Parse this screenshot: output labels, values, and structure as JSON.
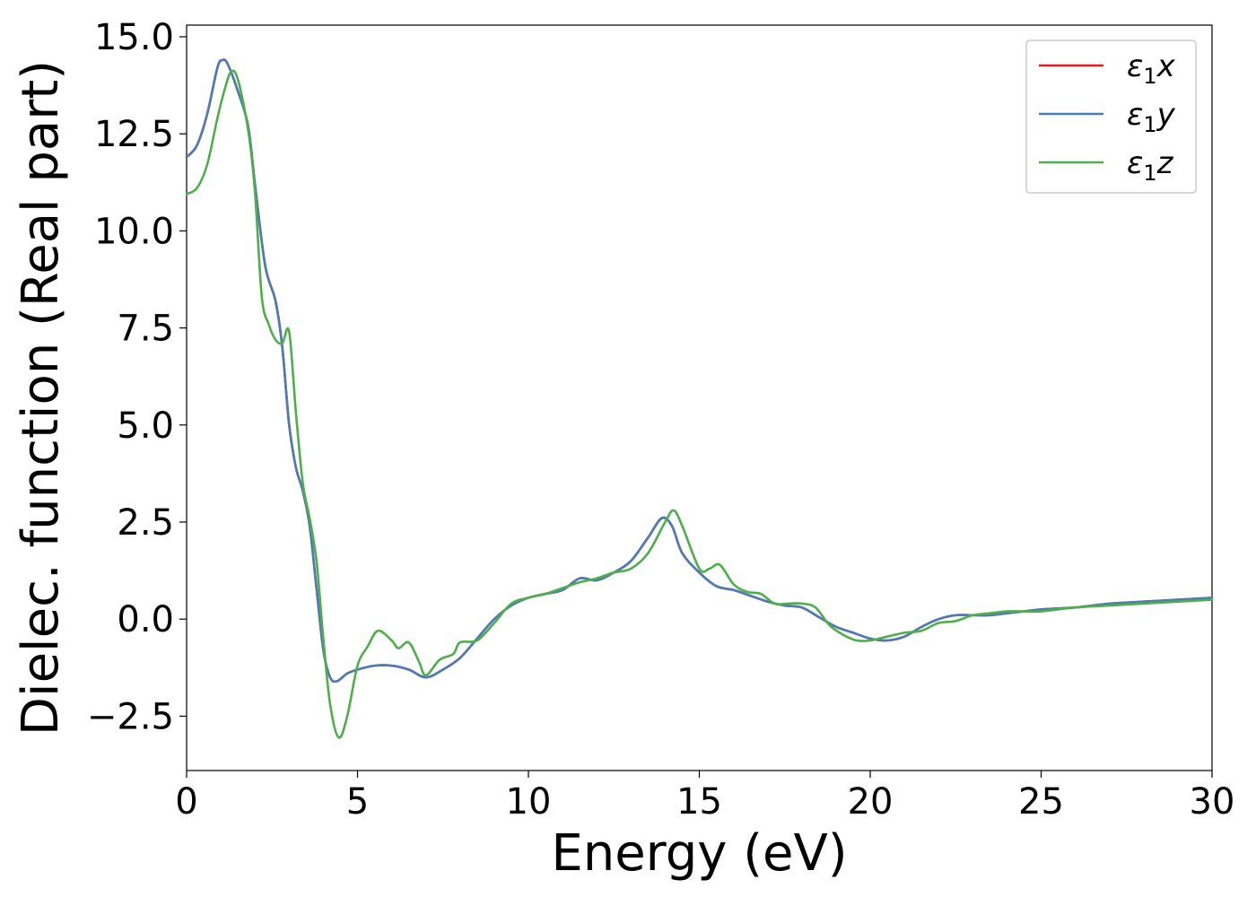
{
  "chart_data": {
    "type": "line",
    "title": "",
    "xlabel": "Energy (eV)",
    "ylabel": "Dielec. function (Real part)",
    "xlim": [
      0,
      30
    ],
    "ylim": [
      -3.9,
      15.3
    ],
    "xticks": [
      0,
      5,
      10,
      15,
      20,
      25,
      30
    ],
    "xtick_labels": [
      "0",
      "5",
      "10",
      "15",
      "20",
      "25",
      "30"
    ],
    "yticks": [
      -2.5,
      0.0,
      2.5,
      5.0,
      7.5,
      10.0,
      12.5,
      15.0
    ],
    "ytick_labels": [
      "−2.5",
      "0.0",
      "2.5",
      "5.0",
      "7.5",
      "10.0",
      "12.5",
      "15.0"
    ],
    "grid": false,
    "legend_position": "top-right",
    "series": [
      {
        "name": "ε1x",
        "symbol": "ε",
        "subscript": "1",
        "axis": "x",
        "color": "#e41a1c",
        "x": [
          0,
          0.3,
          0.6,
          0.9,
          1.05,
          1.2,
          1.5,
          1.8,
          2.0,
          2.3,
          2.6,
          2.8,
          3.0,
          3.2,
          3.4,
          3.6,
          3.8,
          4.0,
          4.2,
          4.4,
          4.7,
          5.0,
          5.5,
          6.0,
          6.5,
          7.0,
          7.5,
          8.0,
          8.5,
          9.0,
          9.5,
          10.0,
          10.5,
          11.0,
          11.5,
          12.0,
          12.5,
          13.0,
          13.5,
          13.9,
          14.2,
          14.5,
          15.0,
          15.5,
          16.0,
          16.5,
          17.0,
          17.5,
          18.0,
          18.5,
          19.0,
          19.5,
          20.0,
          20.5,
          21.0,
          21.5,
          22.0,
          22.5,
          23.0,
          23.5,
          24.0,
          24.5,
          25.0,
          26.0,
          27.0,
          28.0,
          29.0,
          30.0
        ],
        "values": [
          11.9,
          12.2,
          13.0,
          14.2,
          14.4,
          14.3,
          13.6,
          12.7,
          11.2,
          9.1,
          8.2,
          7.0,
          5.0,
          3.9,
          3.3,
          2.4,
          0.8,
          -0.8,
          -1.5,
          -1.6,
          -1.4,
          -1.3,
          -1.2,
          -1.2,
          -1.3,
          -1.5,
          -1.3,
          -1.0,
          -0.5,
          0.0,
          0.35,
          0.55,
          0.65,
          0.75,
          1.05,
          1.0,
          1.2,
          1.5,
          2.1,
          2.6,
          2.4,
          1.7,
          1.2,
          0.85,
          0.75,
          0.6,
          0.45,
          0.35,
          0.3,
          0.05,
          -0.2,
          -0.35,
          -0.5,
          -0.55,
          -0.45,
          -0.2,
          0.0,
          0.1,
          0.1,
          0.1,
          0.15,
          0.2,
          0.25,
          0.3,
          0.4,
          0.45,
          0.5,
          0.55
        ]
      },
      {
        "name": "ε1y",
        "symbol": "ε",
        "subscript": "1",
        "axis": "y",
        "color": "#4a7db7",
        "x": [
          0,
          0.3,
          0.6,
          0.9,
          1.05,
          1.2,
          1.5,
          1.8,
          2.0,
          2.3,
          2.6,
          2.8,
          3.0,
          3.2,
          3.4,
          3.6,
          3.8,
          4.0,
          4.2,
          4.4,
          4.7,
          5.0,
          5.5,
          6.0,
          6.5,
          7.0,
          7.5,
          8.0,
          8.5,
          9.0,
          9.5,
          10.0,
          10.5,
          11.0,
          11.5,
          12.0,
          12.5,
          13.0,
          13.5,
          13.9,
          14.2,
          14.5,
          15.0,
          15.5,
          16.0,
          16.5,
          17.0,
          17.5,
          18.0,
          18.5,
          19.0,
          19.5,
          20.0,
          20.5,
          21.0,
          21.5,
          22.0,
          22.5,
          23.0,
          23.5,
          24.0,
          24.5,
          25.0,
          26.0,
          27.0,
          28.0,
          29.0,
          30.0
        ],
        "values": [
          11.9,
          12.2,
          13.0,
          14.2,
          14.4,
          14.3,
          13.6,
          12.7,
          11.2,
          9.1,
          8.2,
          7.0,
          5.0,
          3.9,
          3.3,
          2.4,
          0.8,
          -0.8,
          -1.5,
          -1.6,
          -1.4,
          -1.3,
          -1.2,
          -1.2,
          -1.3,
          -1.5,
          -1.3,
          -1.0,
          -0.5,
          0.0,
          0.35,
          0.55,
          0.65,
          0.75,
          1.05,
          1.0,
          1.2,
          1.5,
          2.1,
          2.6,
          2.4,
          1.7,
          1.2,
          0.85,
          0.75,
          0.6,
          0.45,
          0.35,
          0.3,
          0.05,
          -0.2,
          -0.35,
          -0.5,
          -0.55,
          -0.45,
          -0.2,
          0.0,
          0.1,
          0.1,
          0.1,
          0.15,
          0.2,
          0.25,
          0.3,
          0.4,
          0.45,
          0.5,
          0.55
        ]
      },
      {
        "name": "ε1z",
        "symbol": "ε",
        "subscript": "1",
        "axis": "z",
        "color": "#4daf4a",
        "x": [
          0,
          0.3,
          0.6,
          0.9,
          1.1,
          1.3,
          1.5,
          1.8,
          2.0,
          2.2,
          2.4,
          2.6,
          2.8,
          3.0,
          3.2,
          3.4,
          3.6,
          3.8,
          4.0,
          4.2,
          4.45,
          4.7,
          5.0,
          5.3,
          5.6,
          6.0,
          6.2,
          6.5,
          6.8,
          7.0,
          7.4,
          7.8,
          8.0,
          8.5,
          9.0,
          9.5,
          10.0,
          10.5,
          11.0,
          11.5,
          12.0,
          12.5,
          13.0,
          13.5,
          14.0,
          14.25,
          14.5,
          15.0,
          15.3,
          15.6,
          16.0,
          16.4,
          16.8,
          17.2,
          17.6,
          18.0,
          18.4,
          18.8,
          19.2,
          19.6,
          20.0,
          20.5,
          21.0,
          21.5,
          22.0,
          22.5,
          23.0,
          23.5,
          24.0,
          24.5,
          25.0,
          26.0,
          27.0,
          28.0,
          29.0,
          30.0
        ],
        "values": [
          10.95,
          11.1,
          11.7,
          12.9,
          13.6,
          14.1,
          13.9,
          12.6,
          11.0,
          8.3,
          7.6,
          7.2,
          7.1,
          7.4,
          5.3,
          3.5,
          2.6,
          1.5,
          -0.5,
          -2.2,
          -3.05,
          -2.5,
          -1.2,
          -0.7,
          -0.3,
          -0.55,
          -0.75,
          -0.6,
          -1.1,
          -1.45,
          -1.05,
          -0.9,
          -0.6,
          -0.55,
          -0.1,
          0.4,
          0.55,
          0.65,
          0.8,
          0.95,
          1.05,
          1.2,
          1.3,
          1.7,
          2.5,
          2.8,
          2.4,
          1.3,
          1.3,
          1.4,
          0.9,
          0.7,
          0.65,
          0.4,
          0.4,
          0.4,
          0.3,
          -0.15,
          -0.4,
          -0.55,
          -0.55,
          -0.45,
          -0.35,
          -0.3,
          -0.1,
          -0.05,
          0.1,
          0.15,
          0.2,
          0.2,
          0.2,
          0.3,
          0.35,
          0.4,
          0.45,
          0.5
        ]
      }
    ]
  }
}
